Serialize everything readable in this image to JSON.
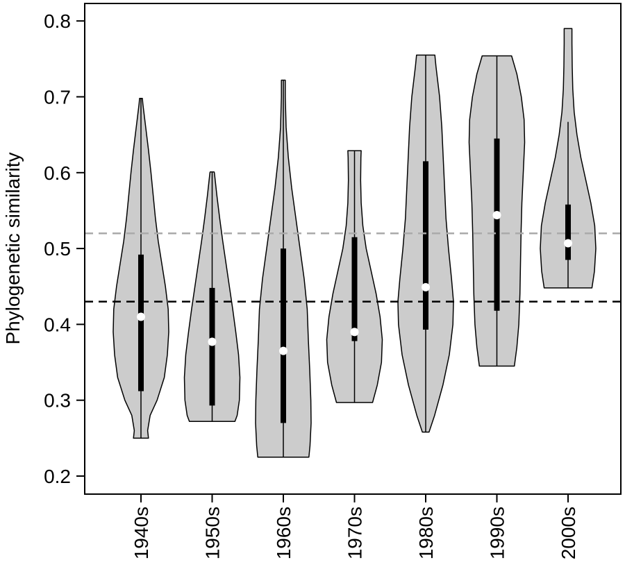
{
  "chart_data": {
    "type": "violin",
    "title": "",
    "xlabel": "",
    "ylabel": "Phylogenetic similarity",
    "ylim": [
      0.185,
      0.825
    ],
    "yticks": [
      "0.2",
      "0.3",
      "0.4",
      "0.5",
      "0.6",
      "0.7",
      "0.8"
    ],
    "categories": [
      "1940s",
      "1950s",
      "1960s",
      "1970s",
      "1980s",
      "1990s",
      "2000s"
    ],
    "fill_color": "#cccccc",
    "median_color": "#ffffff",
    "reference_lines": [
      {
        "value": 0.52,
        "color": "#aaaaaa",
        "style": "dashed"
      },
      {
        "value": 0.43,
        "color": "#000000",
        "style": "dashed"
      }
    ],
    "violins": [
      {
        "category": "1940s",
        "min": 0.25,
        "q1": 0.312,
        "median": 0.41,
        "q3": 0.492,
        "max": 0.698,
        "density": [
          [
            0.25,
            0.27
          ],
          [
            0.26,
            0.24
          ],
          [
            0.28,
            0.33
          ],
          [
            0.3,
            0.58
          ],
          [
            0.33,
            0.84
          ],
          [
            0.36,
            0.95
          ],
          [
            0.39,
            1.0
          ],
          [
            0.42,
            0.98
          ],
          [
            0.45,
            0.88
          ],
          [
            0.48,
            0.75
          ],
          [
            0.51,
            0.62
          ],
          [
            0.54,
            0.52
          ],
          [
            0.57,
            0.44
          ],
          [
            0.6,
            0.36
          ],
          [
            0.63,
            0.27
          ],
          [
            0.66,
            0.17
          ],
          [
            0.69,
            0.07
          ],
          [
            0.698,
            0.05
          ]
        ]
      },
      {
        "category": "1950s",
        "min": 0.272,
        "q1": 0.293,
        "median": 0.377,
        "q3": 0.448,
        "max": 0.601,
        "density": [
          [
            0.272,
            0.82
          ],
          [
            0.28,
            0.9
          ],
          [
            0.3,
            0.98
          ],
          [
            0.33,
            1.0
          ],
          [
            0.36,
            0.95
          ],
          [
            0.39,
            0.85
          ],
          [
            0.42,
            0.74
          ],
          [
            0.45,
            0.62
          ],
          [
            0.48,
            0.5
          ],
          [
            0.51,
            0.38
          ],
          [
            0.54,
            0.27
          ],
          [
            0.57,
            0.17
          ],
          [
            0.6,
            0.08
          ],
          [
            0.601,
            0.07
          ]
        ]
      },
      {
        "category": "1960s",
        "min": 0.225,
        "q1": 0.27,
        "median": 0.365,
        "q3": 0.5,
        "max": 0.722,
        "density": [
          [
            0.225,
            0.92
          ],
          [
            0.24,
            0.96
          ],
          [
            0.27,
            1.0
          ],
          [
            0.3,
            0.99
          ],
          [
            0.34,
            0.95
          ],
          [
            0.38,
            0.9
          ],
          [
            0.42,
            0.86
          ],
          [
            0.46,
            0.75
          ],
          [
            0.5,
            0.6
          ],
          [
            0.54,
            0.45
          ],
          [
            0.58,
            0.3
          ],
          [
            0.62,
            0.18
          ],
          [
            0.66,
            0.1
          ],
          [
            0.7,
            0.07
          ],
          [
            0.722,
            0.07
          ]
        ]
      },
      {
        "category": "1970s",
        "min": 0.297,
        "q1": 0.378,
        "median": 0.39,
        "q3": 0.515,
        "max": 0.629,
        "density": [
          [
            0.297,
            0.65
          ],
          [
            0.32,
            0.82
          ],
          [
            0.35,
            0.97
          ],
          [
            0.38,
            1.0
          ],
          [
            0.41,
            0.92
          ],
          [
            0.44,
            0.78
          ],
          [
            0.47,
            0.6
          ],
          [
            0.5,
            0.42
          ],
          [
            0.53,
            0.3
          ],
          [
            0.56,
            0.24
          ],
          [
            0.59,
            0.22
          ],
          [
            0.62,
            0.23
          ],
          [
            0.629,
            0.24
          ]
        ]
      },
      {
        "category": "1980s",
        "min": 0.258,
        "q1": 0.393,
        "median": 0.449,
        "q3": 0.615,
        "max": 0.755,
        "density": [
          [
            0.258,
            0.12
          ],
          [
            0.28,
            0.32
          ],
          [
            0.32,
            0.62
          ],
          [
            0.36,
            0.85
          ],
          [
            0.4,
            0.98
          ],
          [
            0.43,
            1.0
          ],
          [
            0.46,
            0.93
          ],
          [
            0.5,
            0.82
          ],
          [
            0.54,
            0.73
          ],
          [
            0.58,
            0.68
          ],
          [
            0.62,
            0.63
          ],
          [
            0.66,
            0.58
          ],
          [
            0.7,
            0.5
          ],
          [
            0.74,
            0.37
          ],
          [
            0.755,
            0.33
          ]
        ]
      },
      {
        "category": "1990s",
        "min": 0.345,
        "q1": 0.418,
        "median": 0.544,
        "q3": 0.645,
        "max": 0.754,
        "density": [
          [
            0.345,
            0.63
          ],
          [
            0.37,
            0.72
          ],
          [
            0.4,
            0.79
          ],
          [
            0.44,
            0.83
          ],
          [
            0.48,
            0.85
          ],
          [
            0.52,
            0.87
          ],
          [
            0.56,
            0.9
          ],
          [
            0.6,
            0.95
          ],
          [
            0.64,
            1.0
          ],
          [
            0.67,
            0.98
          ],
          [
            0.7,
            0.88
          ],
          [
            0.73,
            0.72
          ],
          [
            0.754,
            0.53
          ]
        ]
      },
      {
        "category": "2000s",
        "min": 0.448,
        "q1": 0.485,
        "median": 0.507,
        "q3": 0.558,
        "max": 0.79,
        "density": [
          [
            0.448,
            0.86
          ],
          [
            0.47,
            0.95
          ],
          [
            0.5,
            1.0
          ],
          [
            0.53,
            0.96
          ],
          [
            0.56,
            0.82
          ],
          [
            0.59,
            0.64
          ],
          [
            0.62,
            0.46
          ],
          [
            0.65,
            0.32
          ],
          [
            0.68,
            0.22
          ],
          [
            0.71,
            0.17
          ],
          [
            0.74,
            0.15
          ],
          [
            0.77,
            0.14
          ],
          [
            0.79,
            0.14
          ]
        ]
      }
    ],
    "whisker_top": [
      0.698,
      0.601,
      0.722,
      0.629,
      0.755,
      0.754,
      0.667
    ],
    "grid": false,
    "legend": "none"
  }
}
